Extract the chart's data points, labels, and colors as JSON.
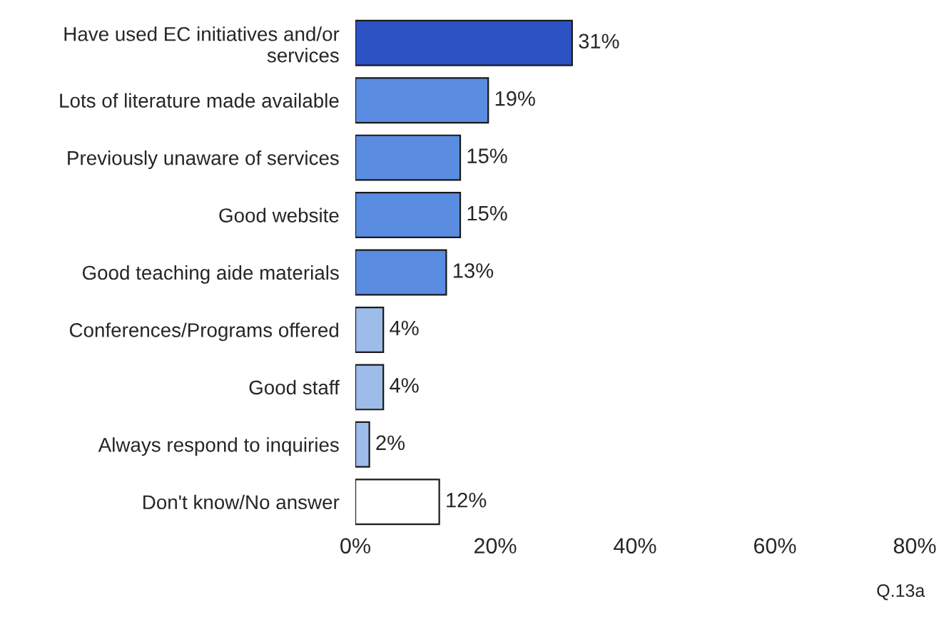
{
  "chart_data": {
    "type": "bar",
    "orientation": "horizontal",
    "categories": [
      "Have used EC initiatives and/or\nservices",
      "Lots of literature made available",
      "Previously unaware of services",
      "Good website",
      "Good teaching aide materials",
      "Conferences/Programs offered",
      "Good staff",
      "Always respond to inquiries",
      "Don't know/No answer"
    ],
    "values": [
      31,
      19,
      15,
      15,
      13,
      4,
      4,
      2,
      12
    ],
    "colors": [
      "#2d52c4",
      "#5a8ce2",
      "#5a8ce2",
      "#5a8ce2",
      "#5a8ce2",
      "#9dbce9",
      "#9dbce9",
      "#9dbce9",
      "#ffffff"
    ],
    "value_labels": [
      "31%",
      "19%",
      "15%",
      "15%",
      "13%",
      "4%",
      "4%",
      "2%",
      "12%"
    ],
    "xlim": [
      0,
      80
    ],
    "xticks": [
      {
        "value": 0,
        "label": "0%"
      },
      {
        "value": 20,
        "label": "20%"
      },
      {
        "value": 40,
        "label": "40%"
      },
      {
        "value": 60,
        "label": "60%"
      },
      {
        "value": 80,
        "label": "80%"
      }
    ],
    "grid": false,
    "legend": false,
    "annotations": [
      "Q.13a"
    ]
  }
}
